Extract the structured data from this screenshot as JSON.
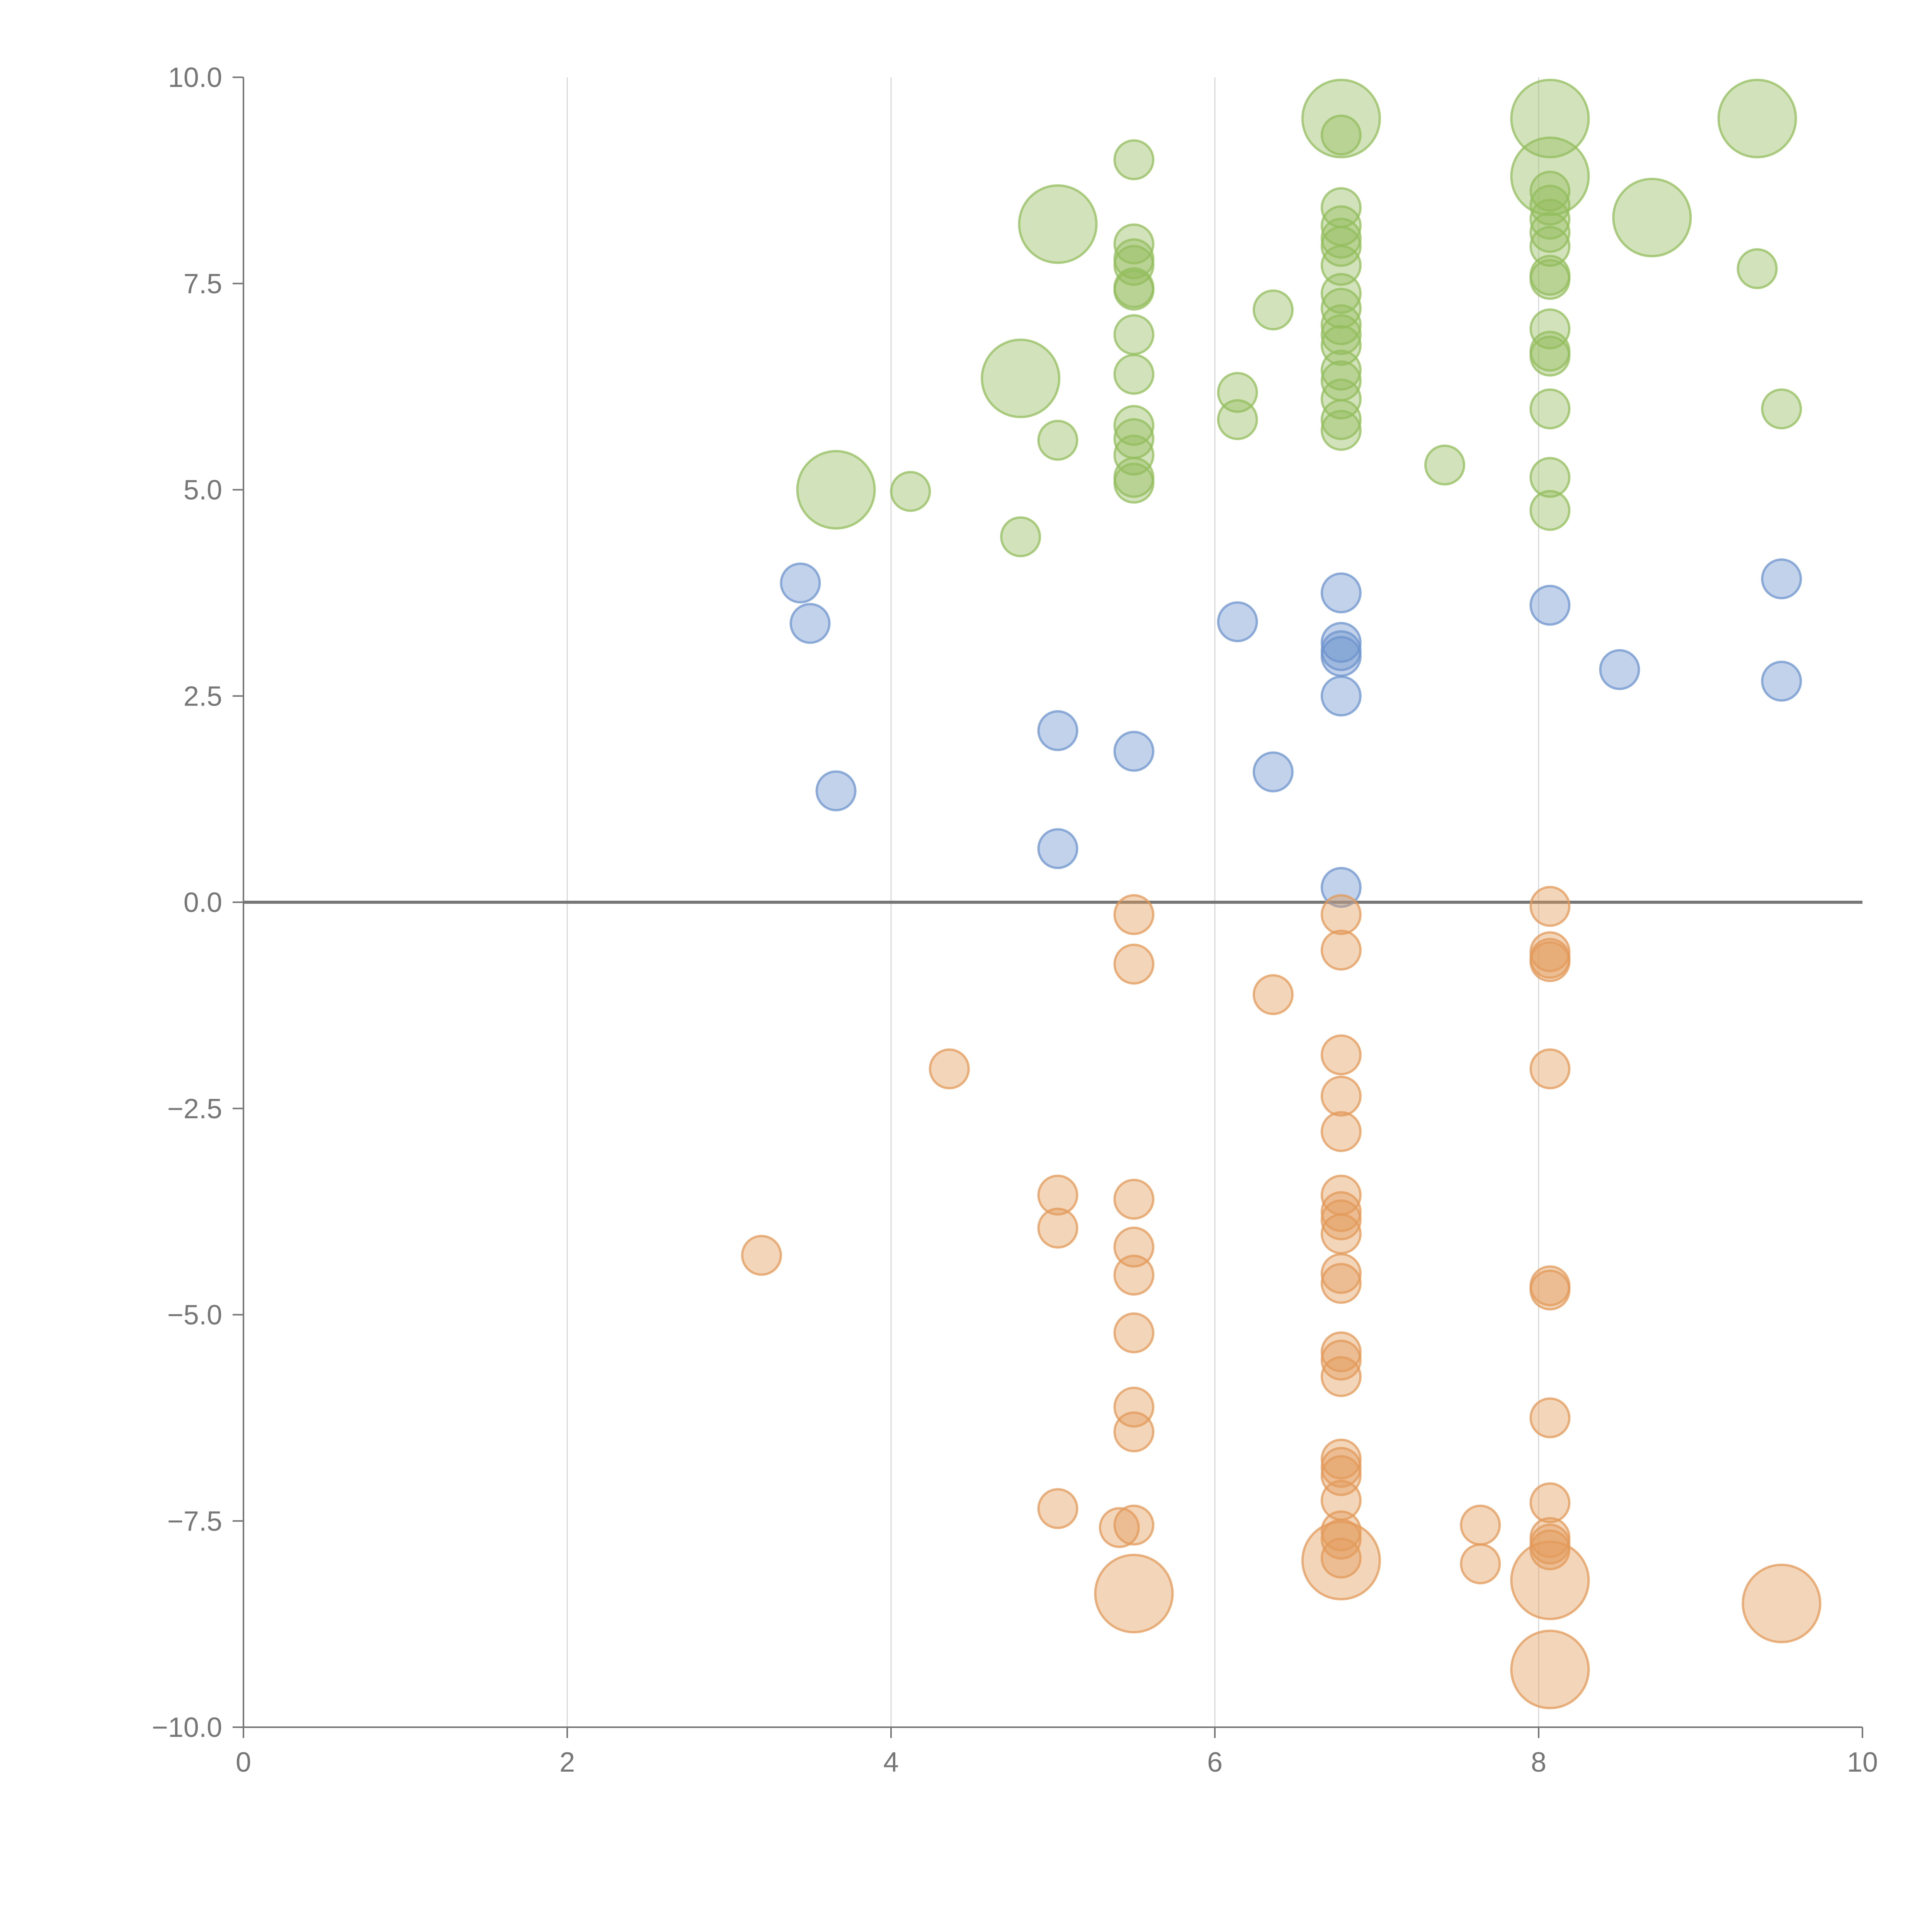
{
  "chart_data": {
    "type": "scatter",
    "title": "",
    "xlabel": "",
    "ylabel": "",
    "xlim": [
      0,
      10
    ],
    "ylim": [
      -10,
      10
    ],
    "x_ticks": [
      "0",
      "2",
      "4",
      "6",
      "8",
      "10"
    ],
    "y_ticks": [
      "10.0",
      "7.5",
      "5.0",
      "2.5",
      "0.0",
      "−2.5",
      "−5.0",
      "−7.5",
      "−10.0"
    ],
    "x_tick_values": [
      0,
      2,
      4,
      6,
      8,
      10
    ],
    "y_tick_values": [
      10,
      7.5,
      5,
      2.5,
      0,
      -2.5,
      -5,
      -7.5,
      -10
    ],
    "x_grid": true,
    "y_grid": false,
    "zero_line": true,
    "colors": {
      "green": "#93bd5e",
      "blue": "#6e94cd",
      "orange": "#e39a5a"
    },
    "series": [
      {
        "name": "green",
        "color": "#93bd5e",
        "points": [
          {
            "x": 5.5,
            "y": 9.0,
            "s": 1
          },
          {
            "x": 5.03,
            "y": 8.22,
            "s": 3
          },
          {
            "x": 6.78,
            "y": 9.5,
            "s": 3
          },
          {
            "x": 6.78,
            "y": 9.3,
            "s": 1
          },
          {
            "x": 8.07,
            "y": 9.5,
            "s": 3
          },
          {
            "x": 9.35,
            "y": 9.5,
            "s": 3
          },
          {
            "x": 8.07,
            "y": 8.8,
            "s": 3
          },
          {
            "x": 8.7,
            "y": 8.3,
            "s": 3
          },
          {
            "x": 9.35,
            "y": 7.68,
            "s": 1
          },
          {
            "x": 5.5,
            "y": 7.98,
            "s": 1
          },
          {
            "x": 5.5,
            "y": 7.8,
            "s": 1
          },
          {
            "x": 5.5,
            "y": 7.72,
            "s": 1
          },
          {
            "x": 5.5,
            "y": 7.45,
            "s": 1
          },
          {
            "x": 5.5,
            "y": 7.42,
            "s": 1
          },
          {
            "x": 5.5,
            "y": 6.88,
            "s": 1
          },
          {
            "x": 5.5,
            "y": 6.4,
            "s": 1
          },
          {
            "x": 5.5,
            "y": 5.78,
            "s": 1
          },
          {
            "x": 5.5,
            "y": 5.62,
            "s": 1
          },
          {
            "x": 5.5,
            "y": 5.42,
            "s": 1
          },
          {
            "x": 5.5,
            "y": 5.15,
            "s": 1
          },
          {
            "x": 5.5,
            "y": 5.08,
            "s": 1
          },
          {
            "x": 4.8,
            "y": 6.35,
            "s": 3
          },
          {
            "x": 3.66,
            "y": 5.0,
            "s": 3
          },
          {
            "x": 4.12,
            "y": 4.98,
            "s": 1
          },
          {
            "x": 4.8,
            "y": 4.43,
            "s": 1
          },
          {
            "x": 5.03,
            "y": 5.6,
            "s": 1
          },
          {
            "x": 6.14,
            "y": 6.18,
            "s": 1
          },
          {
            "x": 6.14,
            "y": 5.85,
            "s": 1
          },
          {
            "x": 6.36,
            "y": 7.18,
            "s": 1
          },
          {
            "x": 7.42,
            "y": 5.3,
            "s": 1
          },
          {
            "x": 6.78,
            "y": 8.42,
            "s": 1
          },
          {
            "x": 6.78,
            "y": 8.2,
            "s": 1
          },
          {
            "x": 6.78,
            "y": 8.05,
            "s": 1
          },
          {
            "x": 6.78,
            "y": 7.95,
            "s": 1
          },
          {
            "x": 6.78,
            "y": 7.72,
            "s": 1
          },
          {
            "x": 6.78,
            "y": 7.38,
            "s": 1
          },
          {
            "x": 6.78,
            "y": 7.2,
            "s": 1
          },
          {
            "x": 6.78,
            "y": 7.0,
            "s": 1
          },
          {
            "x": 6.78,
            "y": 6.88,
            "s": 1
          },
          {
            "x": 6.78,
            "y": 6.75,
            "s": 1
          },
          {
            "x": 6.78,
            "y": 6.45,
            "s": 1
          },
          {
            "x": 6.78,
            "y": 6.32,
            "s": 1
          },
          {
            "x": 6.78,
            "y": 6.1,
            "s": 1
          },
          {
            "x": 6.78,
            "y": 5.85,
            "s": 1
          },
          {
            "x": 6.78,
            "y": 5.72,
            "s": 1
          },
          {
            "x": 8.07,
            "y": 8.62,
            "s": 1
          },
          {
            "x": 8.07,
            "y": 8.45,
            "s": 1
          },
          {
            "x": 8.07,
            "y": 8.28,
            "s": 1
          },
          {
            "x": 8.07,
            "y": 8.12,
            "s": 1
          },
          {
            "x": 8.07,
            "y": 7.95,
            "s": 1
          },
          {
            "x": 8.07,
            "y": 7.6,
            "s": 1
          },
          {
            "x": 8.07,
            "y": 7.55,
            "s": 1
          },
          {
            "x": 8.07,
            "y": 6.95,
            "s": 1
          },
          {
            "x": 8.07,
            "y": 6.68,
            "s": 1
          },
          {
            "x": 8.07,
            "y": 6.62,
            "s": 1
          },
          {
            "x": 8.07,
            "y": 5.98,
            "s": 1
          },
          {
            "x": 8.07,
            "y": 5.15,
            "s": 1
          },
          {
            "x": 8.07,
            "y": 4.75,
            "s": 1
          },
          {
            "x": 9.5,
            "y": 5.98,
            "s": 1
          }
        ]
      },
      {
        "name": "blue",
        "color": "#6e94cd",
        "points": [
          {
            "x": 3.44,
            "y": 3.87,
            "s": 1
          },
          {
            "x": 3.5,
            "y": 3.38,
            "s": 1
          },
          {
            "x": 3.66,
            "y": 1.35,
            "s": 1
          },
          {
            "x": 5.03,
            "y": 2.08,
            "s": 1
          },
          {
            "x": 5.03,
            "y": 0.65,
            "s": 1
          },
          {
            "x": 5.5,
            "y": 1.83,
            "s": 1
          },
          {
            "x": 6.14,
            "y": 3.4,
            "s": 1
          },
          {
            "x": 6.36,
            "y": 1.58,
            "s": 1
          },
          {
            "x": 6.78,
            "y": 3.75,
            "s": 1
          },
          {
            "x": 6.78,
            "y": 3.15,
            "s": 1
          },
          {
            "x": 6.78,
            "y": 3.05,
            "s": 1
          },
          {
            "x": 6.78,
            "y": 2.98,
            "s": 1
          },
          {
            "x": 6.78,
            "y": 2.5,
            "s": 1
          },
          {
            "x": 6.78,
            "y": 0.18,
            "s": 1
          },
          {
            "x": 8.07,
            "y": 3.6,
            "s": 1
          },
          {
            "x": 8.5,
            "y": 2.82,
            "s": 1
          },
          {
            "x": 9.5,
            "y": 3.92,
            "s": 1
          },
          {
            "x": 9.5,
            "y": 2.68,
            "s": 1
          }
        ]
      },
      {
        "name": "orange",
        "color": "#e39a5a",
        "points": [
          {
            "x": 5.5,
            "y": -0.15,
            "s": 1
          },
          {
            "x": 5.5,
            "y": -0.75,
            "s": 1
          },
          {
            "x": 6.36,
            "y": -1.12,
            "s": 1
          },
          {
            "x": 4.36,
            "y": -2.02,
            "s": 1
          },
          {
            "x": 3.2,
            "y": -4.28,
            "s": 1
          },
          {
            "x": 5.03,
            "y": -3.55,
            "s": 1
          },
          {
            "x": 5.03,
            "y": -3.95,
            "s": 1
          },
          {
            "x": 5.5,
            "y": -3.6,
            "s": 1
          },
          {
            "x": 5.5,
            "y": -4.18,
            "s": 1
          },
          {
            "x": 5.5,
            "y": -4.52,
            "s": 1
          },
          {
            "x": 5.5,
            "y": -5.22,
            "s": 1
          },
          {
            "x": 5.5,
            "y": -6.12,
            "s": 1
          },
          {
            "x": 5.5,
            "y": -6.42,
            "s": 1
          },
          {
            "x": 5.03,
            "y": -7.35,
            "s": 1
          },
          {
            "x": 5.41,
            "y": -7.58,
            "s": 1
          },
          {
            "x": 5.5,
            "y": -7.55,
            "s": 1
          },
          {
            "x": 5.5,
            "y": -8.38,
            "s": 3
          },
          {
            "x": 6.78,
            "y": -0.15,
            "s": 1
          },
          {
            "x": 6.78,
            "y": -0.58,
            "s": 1
          },
          {
            "x": 6.78,
            "y": -1.85,
            "s": 1
          },
          {
            "x": 6.78,
            "y": -2.35,
            "s": 1
          },
          {
            "x": 6.78,
            "y": -2.78,
            "s": 1
          },
          {
            "x": 6.78,
            "y": -3.55,
            "s": 1
          },
          {
            "x": 6.78,
            "y": -3.75,
            "s": 1
          },
          {
            "x": 6.78,
            "y": -3.85,
            "s": 1
          },
          {
            "x": 6.78,
            "y": -4.02,
            "s": 1
          },
          {
            "x": 6.78,
            "y": -4.5,
            "s": 1
          },
          {
            "x": 6.78,
            "y": -4.62,
            "s": 1
          },
          {
            "x": 6.78,
            "y": -5.45,
            "s": 1
          },
          {
            "x": 6.78,
            "y": -5.55,
            "s": 1
          },
          {
            "x": 6.78,
            "y": -5.75,
            "s": 1
          },
          {
            "x": 6.78,
            "y": -6.75,
            "s": 1
          },
          {
            "x": 6.78,
            "y": -6.85,
            "s": 1
          },
          {
            "x": 6.78,
            "y": -6.95,
            "s": 1
          },
          {
            "x": 6.78,
            "y": -7.25,
            "s": 1
          },
          {
            "x": 6.78,
            "y": -7.62,
            "s": 1
          },
          {
            "x": 6.78,
            "y": -7.72,
            "s": 1
          },
          {
            "x": 6.78,
            "y": -7.95,
            "s": 1
          },
          {
            "x": 6.78,
            "y": -7.98,
            "s": 3
          },
          {
            "x": 7.64,
            "y": -7.55,
            "s": 1
          },
          {
            "x": 7.64,
            "y": -8.02,
            "s": 1
          },
          {
            "x": 8.07,
            "y": -0.05,
            "s": 1
          },
          {
            "x": 8.07,
            "y": -0.6,
            "s": 1
          },
          {
            "x": 8.07,
            "y": -0.68,
            "s": 1
          },
          {
            "x": 8.07,
            "y": -0.72,
            "s": 1
          },
          {
            "x": 8.07,
            "y": -2.02,
            "s": 1
          },
          {
            "x": 8.07,
            "y": -4.65,
            "s": 1
          },
          {
            "x": 8.07,
            "y": -4.7,
            "s": 1
          },
          {
            "x": 8.07,
            "y": -6.25,
            "s": 1
          },
          {
            "x": 8.07,
            "y": -7.28,
            "s": 1
          },
          {
            "x": 8.07,
            "y": -7.7,
            "s": 1
          },
          {
            "x": 8.07,
            "y": -7.78,
            "s": 1
          },
          {
            "x": 8.07,
            "y": -7.85,
            "s": 1
          },
          {
            "x": 8.07,
            "y": -8.22,
            "s": 3
          },
          {
            "x": 8.07,
            "y": -9.3,
            "s": 3
          },
          {
            "x": 9.5,
            "y": -8.5,
            "s": 3
          }
        ]
      }
    ]
  }
}
